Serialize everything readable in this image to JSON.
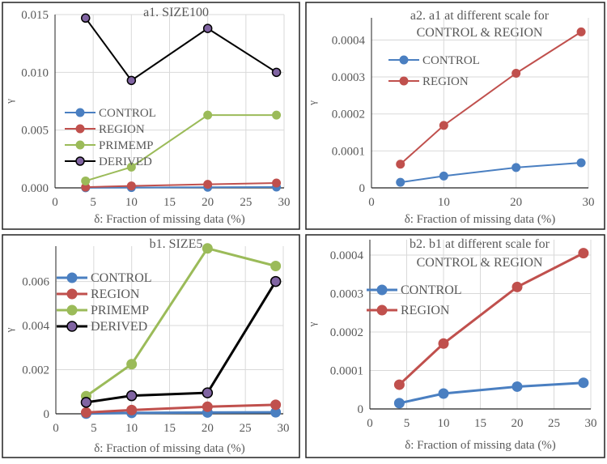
{
  "chart_data": [
    {
      "type": "line",
      "title": "a1. SIZE100",
      "xlabel": "δ: Fraction of missing data (%)",
      "ylabel": "γ",
      "xlim": [
        0,
        30
      ],
      "ylim": [
        0,
        0.015
      ],
      "xticks": [
        "0",
        "5",
        "10",
        "15",
        "20",
        "25",
        "30"
      ],
      "xtick_values": [
        0,
        5,
        10,
        15,
        20,
        25,
        30
      ],
      "yticks": [
        "0.000",
        "0.005",
        "0.010",
        "0.015"
      ],
      "ytick_values": [
        0,
        0.005,
        0.01,
        0.015
      ],
      "legend": "center-left",
      "x": [
        4,
        10,
        20,
        29
      ],
      "series": [
        {
          "name": "CONTROL",
          "color": "#4a7fc1",
          "values": [
            1e-05,
            3e-05,
            5e-05,
            7e-05
          ]
        },
        {
          "name": "REGION",
          "color": "#c0504d",
          "values": [
            6e-05,
            0.00017,
            0.00031,
            0.00042
          ]
        },
        {
          "name": "PRIMEMP",
          "color": "#9bbb59",
          "values": [
            0.0006,
            0.0018,
            0.0063,
            0.0063
          ]
        },
        {
          "name": "DERIVED",
          "color": "#000000",
          "marker": "#8064a2",
          "values": [
            0.0147,
            0.0093,
            0.0138,
            0.01
          ]
        }
      ]
    },
    {
      "type": "line",
      "title": "a2. a1 at different scale for",
      "title2": "CONTROL & REGION",
      "xlabel": "δ: Fraction of missing data (%)",
      "ylabel": "γ",
      "xlim": [
        0,
        30
      ],
      "ylim": [
        0,
        0.00046
      ],
      "xticks": [
        "0",
        "10",
        "20",
        "30"
      ],
      "xtick_values": [
        0,
        10,
        20,
        30
      ],
      "yticks": [
        "0",
        "0.0001",
        "0.0002",
        "0.0003",
        "0.0004"
      ],
      "ytick_values": [
        0,
        0.0001,
        0.0002,
        0.0003,
        0.0004
      ],
      "legend": "top-left",
      "x": [
        4,
        10,
        20,
        29
      ],
      "series": [
        {
          "name": "CONTROL",
          "color": "#4a7fc1",
          "values": [
            1.5e-05,
            3.2e-05,
            5.5e-05,
            6.8e-05
          ]
        },
        {
          "name": "REGION",
          "color": "#c0504d",
          "values": [
            6.4e-05,
            0.000169,
            0.00031,
            0.000422
          ]
        }
      ]
    },
    {
      "type": "line",
      "title": "b1. SIZE5",
      "xlabel": "δ: Fraction of missing data (%)",
      "ylabel": "γ",
      "xlim": [
        0,
        30
      ],
      "ylim": [
        0,
        0.0076
      ],
      "xticks": [
        "0",
        "5",
        "10",
        "15",
        "20",
        "25",
        "30"
      ],
      "xtick_values": [
        0,
        5,
        10,
        15,
        20,
        25,
        30
      ],
      "yticks": [
        "0",
        "0.002",
        "0.004",
        "0.006"
      ],
      "ytick_values": [
        0,
        0.002,
        0.004,
        0.006
      ],
      "legend": "top-left",
      "x": [
        4,
        10,
        20,
        29
      ],
      "series": [
        {
          "name": "CONTROL",
          "color": "#4a7fc1",
          "values": [
            1e-05,
            4e-05,
            6e-05,
            7e-05
          ]
        },
        {
          "name": "REGION",
          "color": "#c0504d",
          "values": [
            6e-05,
            0.00017,
            0.00032,
            0.00041
          ]
        },
        {
          "name": "PRIMEMP",
          "color": "#9bbb59",
          "values": [
            0.0008,
            0.00225,
            0.0075,
            0.0067
          ]
        },
        {
          "name": "DERIVED",
          "color": "#000000",
          "marker": "#8064a2",
          "values": [
            0.00052,
            0.00082,
            0.00095,
            0.006
          ]
        }
      ]
    },
    {
      "type": "line",
      "title": "b2. b1 at different scale for",
      "title2": "CONTROL & REGION",
      "xlabel": "δ: Fraction of missing data (%)",
      "ylabel": "γ",
      "xlim": [
        0,
        30
      ],
      "ylim": [
        0,
        0.00044
      ],
      "xticks": [
        "0",
        "5",
        "10",
        "15",
        "20",
        "25",
        "30"
      ],
      "xtick_values": [
        0,
        5,
        10,
        15,
        20,
        25,
        30
      ],
      "yticks": [
        "0",
        "0.0001",
        "0.0002",
        "0.0003",
        "0.0004"
      ],
      "ytick_values": [
        0,
        0.0001,
        0.0002,
        0.0003,
        0.0004
      ],
      "legend": "top-left",
      "x": [
        4,
        10,
        20,
        29
      ],
      "series": [
        {
          "name": "CONTROL",
          "color": "#4a7fc1",
          "values": [
            1.5e-05,
            4e-05,
            5.8e-05,
            6.8e-05
          ]
        },
        {
          "name": "REGION",
          "color": "#c0504d",
          "values": [
            6.3e-05,
            0.00017,
            0.000317,
            0.000405
          ]
        }
      ]
    }
  ]
}
